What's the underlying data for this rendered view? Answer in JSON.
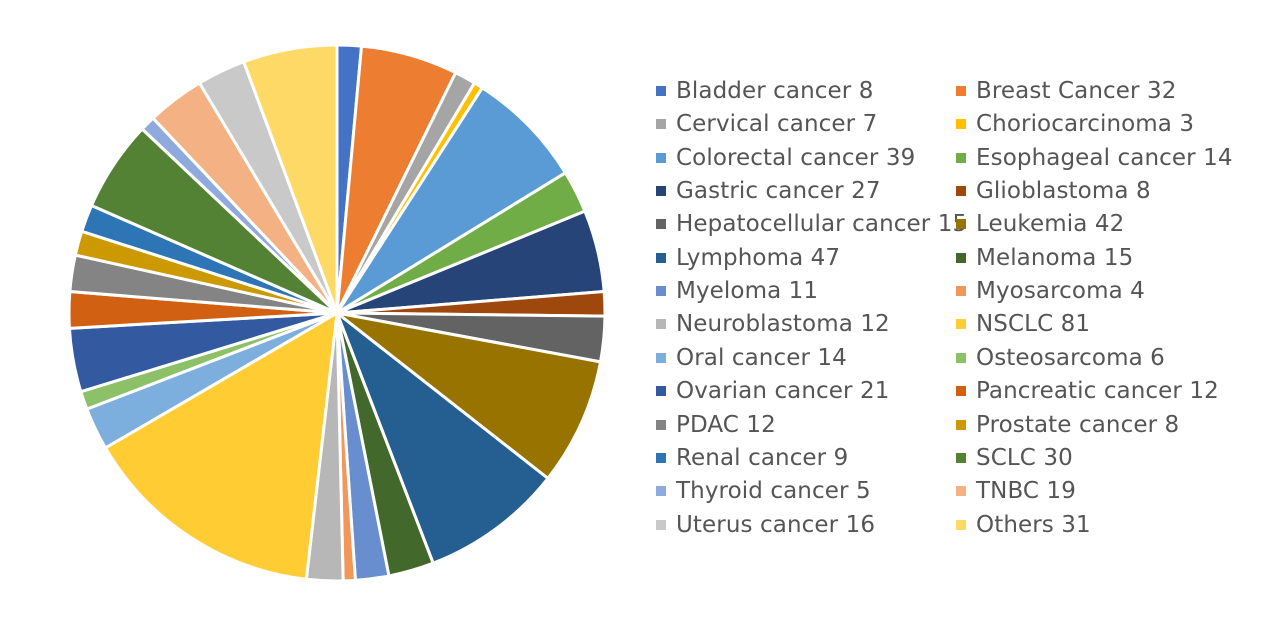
{
  "chart_data": {
    "type": "pie",
    "title": "",
    "legend_position": "right",
    "slices": [
      {
        "label": "Bladder cancer",
        "value": 8,
        "color": "#4472C4"
      },
      {
        "label": "Breast Cancer",
        "value": 32,
        "color": "#ED7D31"
      },
      {
        "label": "Cervical cancer",
        "value": 7,
        "color": "#A5A5A5"
      },
      {
        "label": "Choriocarcinoma",
        "value": 3,
        "color": "#FFC000"
      },
      {
        "label": "Colorectal cancer",
        "value": 39,
        "color": "#5B9BD5"
      },
      {
        "label": "Esophageal cancer",
        "value": 14,
        "color": "#70AD47"
      },
      {
        "label": "Gastric cancer",
        "value": 27,
        "color": "#264478"
      },
      {
        "label": "Glioblastoma",
        "value": 8,
        "color": "#9E480E"
      },
      {
        "label": "Hepatocellular cancer",
        "value": 15,
        "color": "#636363"
      },
      {
        "label": "Leukemia",
        "value": 42,
        "color": "#997300"
      },
      {
        "label": "Lymphoma",
        "value": 47,
        "color": "#255E91"
      },
      {
        "label": "Melanoma",
        "value": 15,
        "color": "#43682B"
      },
      {
        "label": "Myeloma",
        "value": 11,
        "color": "#698ED0"
      },
      {
        "label": "Myosarcoma",
        "value": 4,
        "color": "#F1975A"
      },
      {
        "label": "Neuroblastoma",
        "value": 12,
        "color": "#B7B7B7"
      },
      {
        "label": "NSCLC",
        "value": 81,
        "color": "#FFCD33"
      },
      {
        "label": "Oral cancer",
        "value": 14,
        "color": "#7CAFDD"
      },
      {
        "label": "Osteosarcoma",
        "value": 6,
        "color": "#8CC168"
      },
      {
        "label": "Ovarian cancer",
        "value": 21,
        "color": "#335AA1"
      },
      {
        "label": "Pancreatic cancer",
        "value": 12,
        "color": "#D26012"
      },
      {
        "label": "PDAC",
        "value": 12,
        "color": "#848484"
      },
      {
        "label": "Prostate cancer",
        "value": 8,
        "color": "#CC9A00"
      },
      {
        "label": "Renal cancer",
        "value": 9,
        "color": "#2E75B6"
      },
      {
        "label": "SCLC",
        "value": 30,
        "color": "#548235"
      },
      {
        "label": "Thyroid cancer",
        "value": 5,
        "color": "#8FAADC"
      },
      {
        "label": "TNBC",
        "value": 19,
        "color": "#F4B183"
      },
      {
        "label": "Uterus cancer",
        "value": 16,
        "color": "#C9C9C9"
      },
      {
        "label": "Others",
        "value": 31,
        "color": "#FFD966"
      }
    ]
  }
}
